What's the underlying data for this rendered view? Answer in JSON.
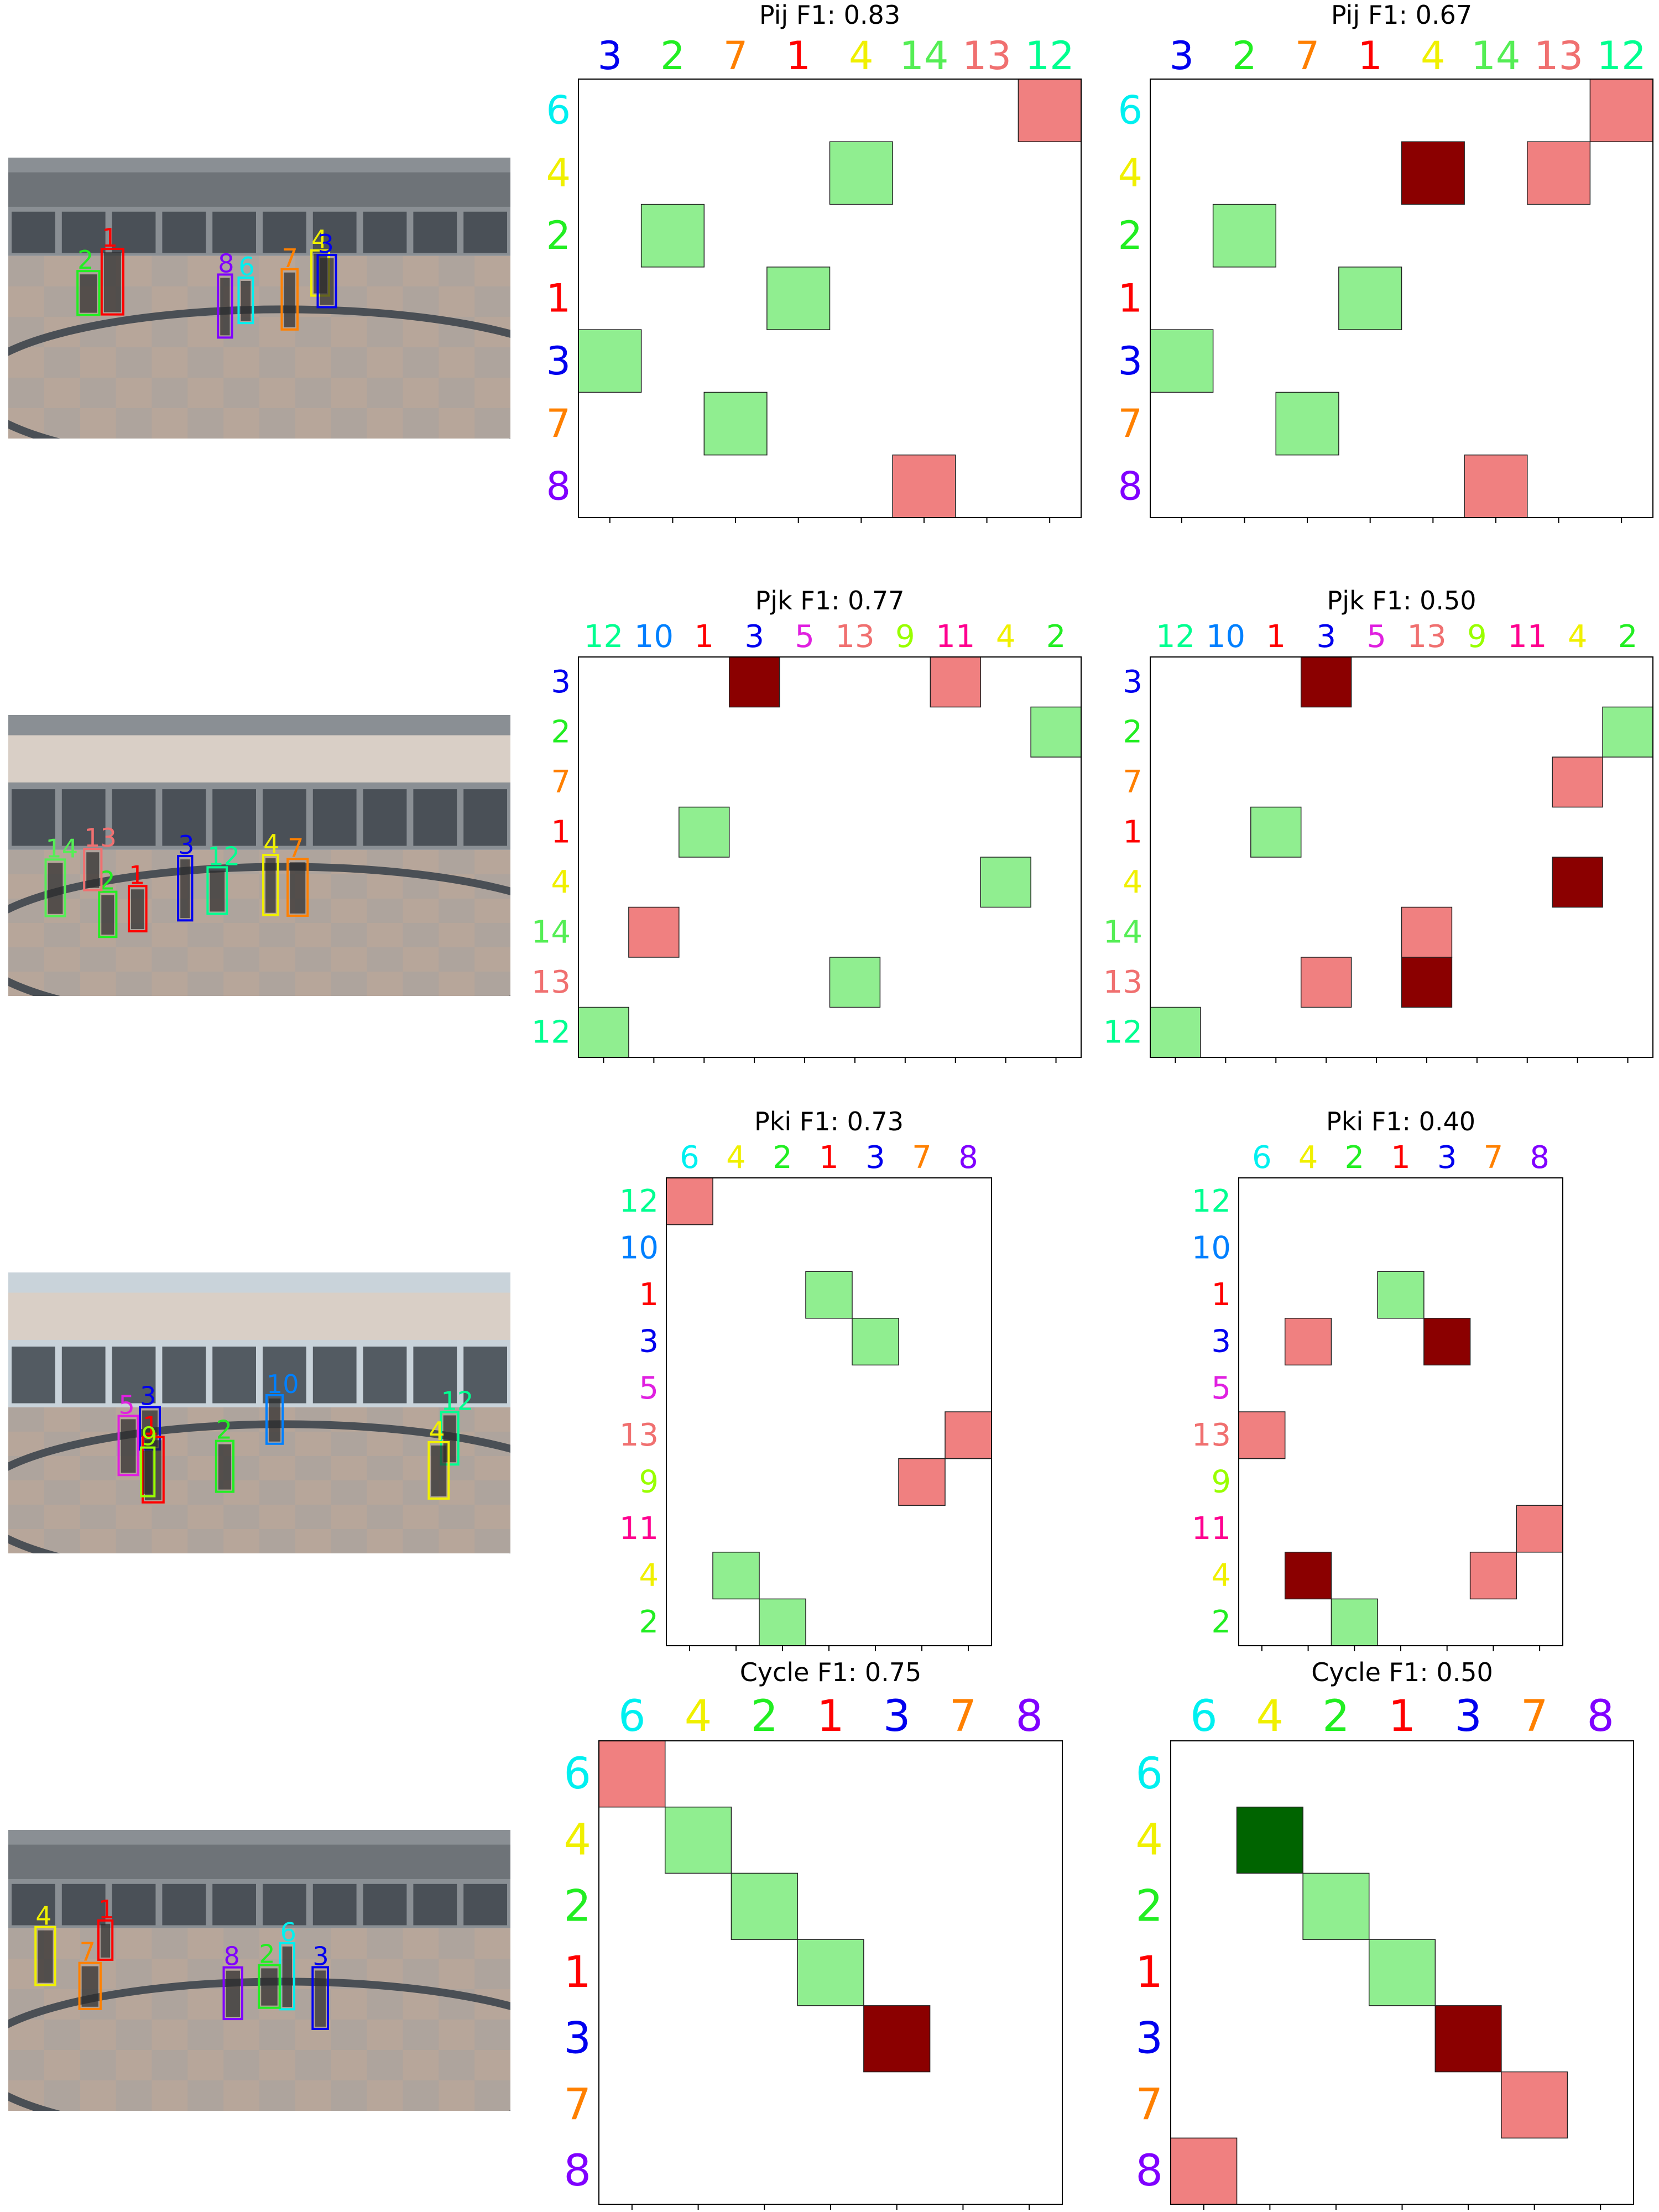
{
  "palette": {
    "1": "#ff0000",
    "2": "#22ee22",
    "3": "#0000ee",
    "4": "#f0f000",
    "5": "#e020e0",
    "6": "#00f0f0",
    "7": "#ff8000",
    "8": "#8000ff",
    "9": "#99ff00",
    "10": "#0080ff",
    "11": "#ff0090",
    "12": "#00ff90",
    "13": "#f07070",
    "14": "#55ee55"
  },
  "cell_colors": {
    "tp": "#90ee90",
    "fp": "#f08080",
    "fn": "#8b0000",
    "tn": "#006400"
  },
  "scene_photos": [
    {
      "tags": [
        "6",
        "8",
        "7",
        "4",
        "3",
        "1",
        "2"
      ]
    },
    {
      "tags": [
        "12",
        "2",
        "4",
        "3",
        "1",
        "7",
        "13",
        "14"
      ]
    },
    {
      "tags": [
        "12",
        "2",
        "3",
        "1",
        "4",
        "10",
        "5",
        "9"
      ]
    },
    {
      "tags": [
        "6",
        "8",
        "7",
        "4",
        "3",
        "1",
        "2"
      ]
    }
  ],
  "chart_data": [
    {
      "type": "heatmap",
      "title": "Pij F1: 0.83",
      "columns": [
        "3",
        "2",
        "7",
        "1",
        "4",
        "14",
        "13",
        "12"
      ],
      "rows": [
        "6",
        "4",
        "2",
        "1",
        "3",
        "7",
        "8"
      ],
      "cells": [
        [
          0,
          7,
          "fp"
        ],
        [
          1,
          4,
          "tp"
        ],
        [
          2,
          1,
          "tp"
        ],
        [
          3,
          3,
          "tp"
        ],
        [
          4,
          0,
          "tp"
        ],
        [
          5,
          2,
          "tp"
        ],
        [
          6,
          5,
          "fp"
        ]
      ]
    },
    {
      "type": "heatmap",
      "title": "Pij F1: 0.67",
      "columns": [
        "3",
        "2",
        "7",
        "1",
        "4",
        "14",
        "13",
        "12"
      ],
      "rows": [
        "6",
        "4",
        "2",
        "1",
        "3",
        "7",
        "8"
      ],
      "cells": [
        [
          0,
          7,
          "fp"
        ],
        [
          1,
          4,
          "fn"
        ],
        [
          1,
          6,
          "fp"
        ],
        [
          2,
          1,
          "tp"
        ],
        [
          3,
          3,
          "tp"
        ],
        [
          4,
          0,
          "tp"
        ],
        [
          5,
          2,
          "tp"
        ],
        [
          6,
          5,
          "fp"
        ]
      ]
    },
    {
      "type": "heatmap",
      "title": "Pjk F1: 0.77",
      "columns": [
        "12",
        "10",
        "1",
        "3",
        "5",
        "13",
        "9",
        "11",
        "4",
        "2"
      ],
      "rows": [
        "3",
        "2",
        "7",
        "1",
        "4",
        "14",
        "13",
        "12"
      ],
      "cells": [
        [
          0,
          3,
          "fn"
        ],
        [
          0,
          7,
          "fp"
        ],
        [
          1,
          9,
          "tp"
        ],
        [
          3,
          2,
          "tp"
        ],
        [
          4,
          8,
          "tp"
        ],
        [
          5,
          1,
          "fp"
        ],
        [
          6,
          5,
          "tp"
        ],
        [
          7,
          0,
          "tp"
        ]
      ]
    },
    {
      "type": "heatmap",
      "title": "Pjk F1: 0.50",
      "columns": [
        "12",
        "10",
        "1",
        "3",
        "5",
        "13",
        "9",
        "11",
        "4",
        "2"
      ],
      "rows": [
        "3",
        "2",
        "7",
        "1",
        "4",
        "14",
        "13",
        "12"
      ],
      "cells": [
        [
          0,
          3,
          "fn"
        ],
        [
          1,
          9,
          "tp"
        ],
        [
          2,
          8,
          "fp"
        ],
        [
          3,
          2,
          "tp"
        ],
        [
          4,
          8,
          "fn"
        ],
        [
          5,
          5,
          "fp"
        ],
        [
          6,
          3,
          "fp"
        ],
        [
          6,
          5,
          "fn"
        ],
        [
          7,
          0,
          "tp"
        ]
      ]
    },
    {
      "type": "heatmap",
      "title": "Pki F1: 0.73",
      "columns": [
        "6",
        "4",
        "2",
        "1",
        "3",
        "7",
        "8"
      ],
      "rows": [
        "12",
        "10",
        "1",
        "3",
        "5",
        "13",
        "9",
        "11",
        "4",
        "2"
      ],
      "cells": [
        [
          0,
          0,
          "fp"
        ],
        [
          2,
          3,
          "tp"
        ],
        [
          3,
          4,
          "tp"
        ],
        [
          5,
          6,
          "fp"
        ],
        [
          6,
          5,
          "fp"
        ],
        [
          8,
          1,
          "tp"
        ],
        [
          9,
          2,
          "tp"
        ]
      ]
    },
    {
      "type": "heatmap",
      "title": "Pki F1: 0.40",
      "columns": [
        "6",
        "4",
        "2",
        "1",
        "3",
        "7",
        "8"
      ],
      "rows": [
        "12",
        "10",
        "1",
        "3",
        "5",
        "13",
        "9",
        "11",
        "4",
        "2"
      ],
      "cells": [
        [
          2,
          3,
          "tp"
        ],
        [
          3,
          1,
          "fp"
        ],
        [
          3,
          4,
          "fn"
        ],
        [
          5,
          0,
          "fp"
        ],
        [
          7,
          6,
          "fp"
        ],
        [
          8,
          1,
          "fn"
        ],
        [
          8,
          5,
          "fp"
        ],
        [
          9,
          2,
          "tp"
        ]
      ]
    },
    {
      "type": "heatmap",
      "title": "Cycle F1: 0.75",
      "columns": [
        "6",
        "4",
        "2",
        "1",
        "3",
        "7",
        "8"
      ],
      "rows": [
        "6",
        "4",
        "2",
        "1",
        "3",
        "7",
        "8"
      ],
      "cells": [
        [
          0,
          0,
          "fp"
        ],
        [
          1,
          1,
          "tp"
        ],
        [
          2,
          2,
          "tp"
        ],
        [
          3,
          3,
          "tp"
        ],
        [
          4,
          4,
          "fn"
        ]
      ]
    },
    {
      "type": "heatmap",
      "title": "Cycle F1: 0.50",
      "columns": [
        "6",
        "4",
        "2",
        "1",
        "3",
        "7",
        "8"
      ],
      "rows": [
        "6",
        "4",
        "2",
        "1",
        "3",
        "7",
        "8"
      ],
      "cells": [
        [
          1,
          1,
          "tn"
        ],
        [
          2,
          2,
          "tp"
        ],
        [
          3,
          3,
          "tp"
        ],
        [
          4,
          4,
          "fn"
        ],
        [
          5,
          5,
          "fp"
        ],
        [
          6,
          0,
          "fp"
        ]
      ]
    }
  ]
}
